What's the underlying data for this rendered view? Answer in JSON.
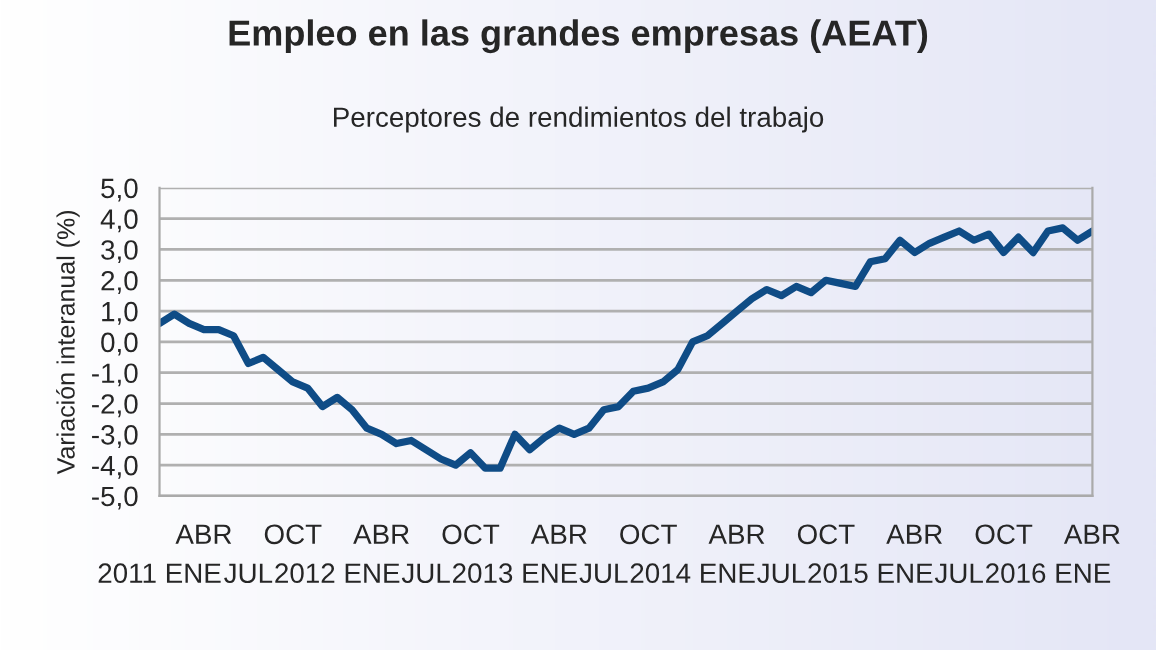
{
  "chart_data": {
    "type": "line",
    "title": "Empleo en las grandes empresas (AEAT)",
    "subtitle": "Perceptores de rendimientos del trabajo",
    "ylabel": "Variación interanual (%)",
    "categories": [
      "2011 ENE",
      null,
      null,
      "ABR",
      null,
      null,
      "JUL",
      null,
      null,
      "OCT",
      null,
      null,
      "2012 ENE",
      null,
      null,
      "ABR",
      null,
      null,
      "JUL",
      null,
      null,
      "OCT",
      null,
      null,
      "2013 ENE",
      null,
      null,
      "ABR",
      null,
      null,
      "JUL",
      null,
      null,
      "OCT",
      null,
      null,
      "2014 ENE",
      null,
      null,
      "ABR",
      null,
      null,
      "JUL",
      null,
      null,
      "OCT",
      null,
      null,
      "2015 ENE",
      null,
      null,
      "ABR",
      null,
      null,
      "JUL",
      null,
      null,
      "OCT",
      null,
      null,
      "2016 ENE",
      null,
      null,
      "ABR"
    ],
    "series": [
      {
        "color": "#0f4c86",
        "values": [
          0.6,
          0.9,
          0.6,
          0.4,
          0.4,
          0.2,
          -0.7,
          -0.5,
          -0.9,
          -1.3,
          -1.5,
          -2.1,
          -1.8,
          -2.2,
          -2.8,
          -3.0,
          -3.3,
          -3.2,
          -3.5,
          -3.8,
          -4.0,
          -3.6,
          -4.1,
          -4.1,
          -3.0,
          -3.5,
          -3.1,
          -2.8,
          -3.0,
          -2.8,
          -2.2,
          -2.1,
          -1.6,
          -1.5,
          -1.3,
          -0.9,
          0.0,
          0.2,
          0.6,
          1.0,
          1.4,
          1.7,
          1.5,
          1.8,
          1.6,
          2.0,
          1.9,
          1.8,
          2.6,
          2.7,
          3.3,
          2.9,
          3.2,
          3.4,
          3.6,
          3.3,
          3.5,
          2.9,
          3.4,
          2.9,
          3.6,
          3.7,
          3.3,
          3.6
        ]
      }
    ],
    "ylim": [
      -5,
      5
    ],
    "yticks": [
      {
        "value": -5,
        "label": "-5,0"
      },
      {
        "value": -4,
        "label": "-4,0"
      },
      {
        "value": -3,
        "label": "-3,0"
      },
      {
        "value": -2,
        "label": "-2,0"
      },
      {
        "value": -1,
        "label": "-1,0"
      },
      {
        "value": 0,
        "label": "0,0"
      },
      {
        "value": 1,
        "label": "1,0"
      },
      {
        "value": 2,
        "label": "2,0"
      },
      {
        "value": 3,
        "label": "3,0"
      },
      {
        "value": 4,
        "label": "4,0"
      },
      {
        "value": 5,
        "label": "5,0"
      }
    ],
    "grid": "y",
    "legend": false,
    "marker": "none",
    "line_style": "solid"
  }
}
